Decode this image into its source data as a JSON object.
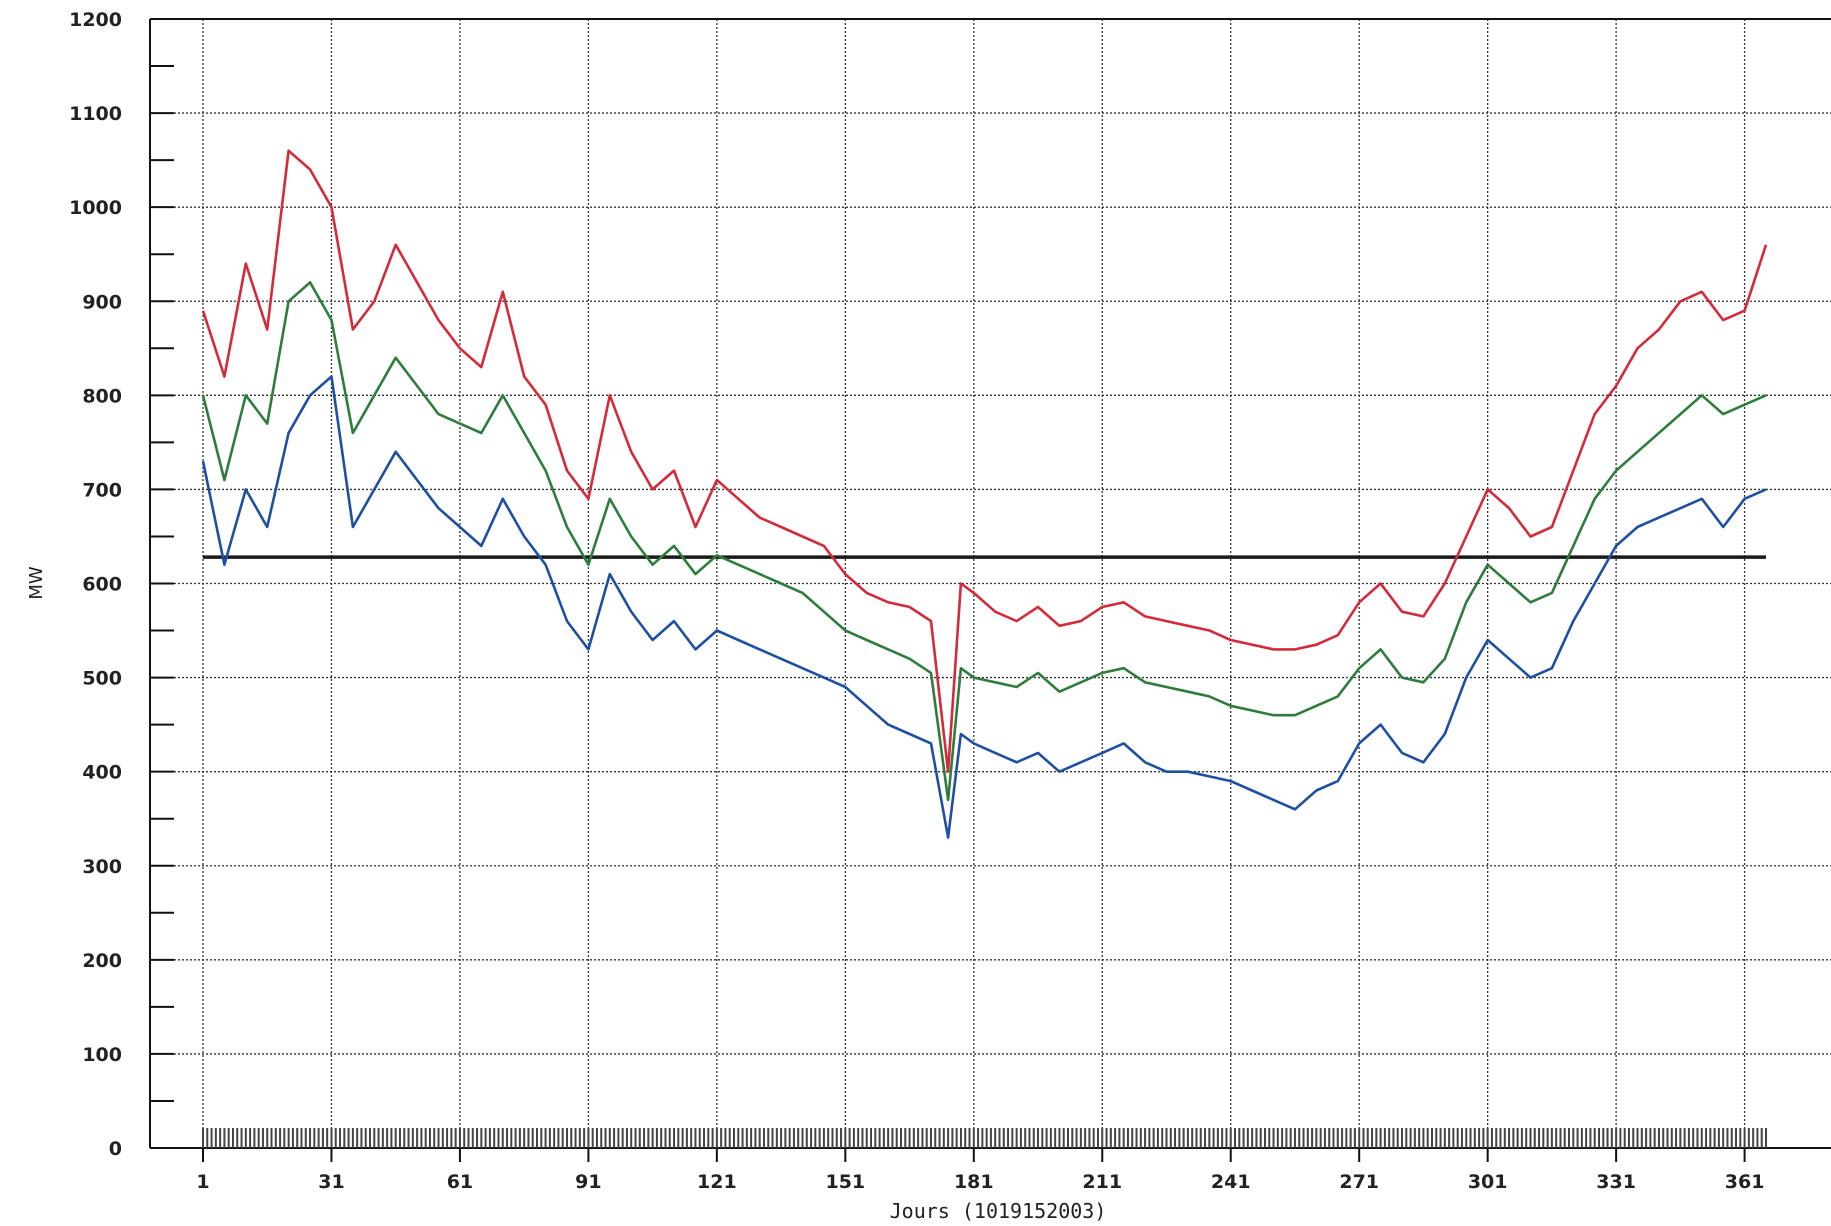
{
  "chart_data": {
    "type": "line",
    "title": "",
    "xlabel": "Jours (1019152003)",
    "ylabel": "MW",
    "xlim": [
      1,
      366
    ],
    "ylim": [
      0,
      1200
    ],
    "x_ticks": [
      1,
      31,
      61,
      91,
      121,
      151,
      181,
      211,
      241,
      271,
      301,
      331,
      361
    ],
    "y_ticks": [
      0,
      100,
      200,
      300,
      400,
      500,
      600,
      700,
      800,
      900,
      1000,
      1100,
      1200
    ],
    "grid": true,
    "legend": "none",
    "reference_line": {
      "value": 628,
      "color": "#1a1a1a"
    },
    "series": [
      {
        "color": "#d42a3a",
        "values": [
          [
            1,
            890
          ],
          [
            6,
            820
          ],
          [
            11,
            940
          ],
          [
            16,
            870
          ],
          [
            21,
            1060
          ],
          [
            26,
            1040
          ],
          [
            31,
            1000
          ],
          [
            36,
            870
          ],
          [
            41,
            900
          ],
          [
            46,
            960
          ],
          [
            51,
            920
          ],
          [
            56,
            880
          ],
          [
            61,
            850
          ],
          [
            66,
            830
          ],
          [
            71,
            910
          ],
          [
            76,
            820
          ],
          [
            81,
            790
          ],
          [
            86,
            720
          ],
          [
            91,
            690
          ],
          [
            96,
            800
          ],
          [
            101,
            740
          ],
          [
            106,
            700
          ],
          [
            111,
            720
          ],
          [
            116,
            660
          ],
          [
            121,
            710
          ],
          [
            126,
            690
          ],
          [
            131,
            670
          ],
          [
            136,
            660
          ],
          [
            141,
            650
          ],
          [
            146,
            640
          ],
          [
            151,
            610
          ],
          [
            156,
            590
          ],
          [
            161,
            580
          ],
          [
            166,
            575
          ],
          [
            171,
            560
          ],
          [
            175,
            400
          ],
          [
            178,
            600
          ],
          [
            181,
            590
          ],
          [
            186,
            570
          ],
          [
            191,
            560
          ],
          [
            196,
            575
          ],
          [
            201,
            555
          ],
          [
            206,
            560
          ],
          [
            211,
            575
          ],
          [
            216,
            580
          ],
          [
            221,
            565
          ],
          [
            226,
            560
          ],
          [
            231,
            555
          ],
          [
            236,
            550
          ],
          [
            241,
            540
          ],
          [
            246,
            535
          ],
          [
            251,
            530
          ],
          [
            256,
            530
          ],
          [
            261,
            535
          ],
          [
            266,
            545
          ],
          [
            271,
            580
          ],
          [
            276,
            600
          ],
          [
            281,
            570
          ],
          [
            286,
            565
          ],
          [
            291,
            600
          ],
          [
            296,
            650
          ],
          [
            301,
            700
          ],
          [
            306,
            680
          ],
          [
            311,
            650
          ],
          [
            316,
            660
          ],
          [
            321,
            720
          ],
          [
            326,
            780
          ],
          [
            331,
            810
          ],
          [
            336,
            850
          ],
          [
            341,
            870
          ],
          [
            346,
            900
          ],
          [
            351,
            910
          ],
          [
            356,
            880
          ],
          [
            361,
            890
          ],
          [
            366,
            960
          ]
        ]
      },
      {
        "color": "#2e7d3c",
        "values": [
          [
            1,
            800
          ],
          [
            6,
            710
          ],
          [
            11,
            800
          ],
          [
            16,
            770
          ],
          [
            21,
            900
          ],
          [
            26,
            920
          ],
          [
            31,
            880
          ],
          [
            36,
            760
          ],
          [
            41,
            800
          ],
          [
            46,
            840
          ],
          [
            51,
            810
          ],
          [
            56,
            780
          ],
          [
            61,
            770
          ],
          [
            66,
            760
          ],
          [
            71,
            800
          ],
          [
            76,
            760
          ],
          [
            81,
            720
          ],
          [
            86,
            660
          ],
          [
            91,
            620
          ],
          [
            96,
            690
          ],
          [
            101,
            650
          ],
          [
            106,
            620
          ],
          [
            111,
            640
          ],
          [
            116,
            610
          ],
          [
            121,
            630
          ],
          [
            126,
            620
          ],
          [
            131,
            610
          ],
          [
            136,
            600
          ],
          [
            141,
            590
          ],
          [
            146,
            570
          ],
          [
            151,
            550
          ],
          [
            156,
            540
          ],
          [
            161,
            530
          ],
          [
            166,
            520
          ],
          [
            171,
            505
          ],
          [
            175,
            370
          ],
          [
            178,
            510
          ],
          [
            181,
            500
          ],
          [
            186,
            495
          ],
          [
            191,
            490
          ],
          [
            196,
            505
          ],
          [
            201,
            485
          ],
          [
            206,
            495
          ],
          [
            211,
            505
          ],
          [
            216,
            510
          ],
          [
            221,
            495
          ],
          [
            226,
            490
          ],
          [
            231,
            485
          ],
          [
            236,
            480
          ],
          [
            241,
            470
          ],
          [
            246,
            465
          ],
          [
            251,
            460
          ],
          [
            256,
            460
          ],
          [
            261,
            470
          ],
          [
            266,
            480
          ],
          [
            271,
            510
          ],
          [
            276,
            530
          ],
          [
            281,
            500
          ],
          [
            286,
            495
          ],
          [
            291,
            520
          ],
          [
            296,
            580
          ],
          [
            301,
            620
          ],
          [
            306,
            600
          ],
          [
            311,
            580
          ],
          [
            316,
            590
          ],
          [
            321,
            640
          ],
          [
            326,
            690
          ],
          [
            331,
            720
          ],
          [
            336,
            740
          ],
          [
            341,
            760
          ],
          [
            346,
            780
          ],
          [
            351,
            800
          ],
          [
            356,
            780
          ],
          [
            361,
            790
          ],
          [
            366,
            800
          ]
        ]
      },
      {
        "color": "#1e4fa3",
        "values": [
          [
            1,
            730
          ],
          [
            6,
            620
          ],
          [
            11,
            700
          ],
          [
            16,
            660
          ],
          [
            21,
            760
          ],
          [
            26,
            800
          ],
          [
            31,
            820
          ],
          [
            36,
            660
          ],
          [
            41,
            700
          ],
          [
            46,
            740
          ],
          [
            51,
            710
          ],
          [
            56,
            680
          ],
          [
            61,
            660
          ],
          [
            66,
            640
          ],
          [
            71,
            690
          ],
          [
            76,
            650
          ],
          [
            81,
            620
          ],
          [
            86,
            560
          ],
          [
            91,
            530
          ],
          [
            96,
            610
          ],
          [
            101,
            570
          ],
          [
            106,
            540
          ],
          [
            111,
            560
          ],
          [
            116,
            530
          ],
          [
            121,
            550
          ],
          [
            126,
            540
          ],
          [
            131,
            530
          ],
          [
            136,
            520
          ],
          [
            141,
            510
          ],
          [
            146,
            500
          ],
          [
            151,
            490
          ],
          [
            156,
            470
          ],
          [
            161,
            450
          ],
          [
            166,
            440
          ],
          [
            171,
            430
          ],
          [
            175,
            330
          ],
          [
            178,
            440
          ],
          [
            181,
            430
          ],
          [
            186,
            420
          ],
          [
            191,
            410
          ],
          [
            196,
            420
          ],
          [
            201,
            400
          ],
          [
            206,
            410
          ],
          [
            211,
            420
          ],
          [
            216,
            430
          ],
          [
            221,
            410
          ],
          [
            226,
            400
          ],
          [
            231,
            400
          ],
          [
            236,
            395
          ],
          [
            241,
            390
          ],
          [
            246,
            380
          ],
          [
            251,
            370
          ],
          [
            256,
            360
          ],
          [
            261,
            380
          ],
          [
            266,
            390
          ],
          [
            271,
            430
          ],
          [
            276,
            450
          ],
          [
            281,
            420
          ],
          [
            286,
            410
          ],
          [
            291,
            440
          ],
          [
            296,
            500
          ],
          [
            301,
            540
          ],
          [
            306,
            520
          ],
          [
            311,
            500
          ],
          [
            316,
            510
          ],
          [
            321,
            560
          ],
          [
            326,
            600
          ],
          [
            331,
            640
          ],
          [
            336,
            660
          ],
          [
            341,
            670
          ],
          [
            346,
            680
          ],
          [
            351,
            690
          ],
          [
            356,
            660
          ],
          [
            361,
            690
          ],
          [
            366,
            700
          ]
        ]
      }
    ]
  }
}
